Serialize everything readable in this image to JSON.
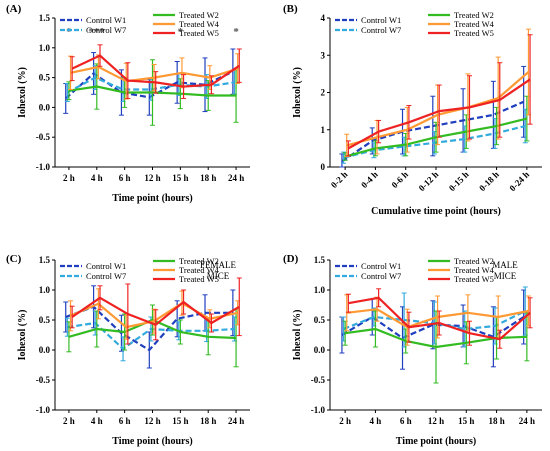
{
  "colors": {
    "W1": "#1f3fbf",
    "W7": "#33aadd",
    "W2": "#33bb22",
    "W4": "#ff9933",
    "W5": "#ee2222"
  },
  "chart_data": [
    {
      "panel": "(A)",
      "type": "line",
      "categories": [
        "2 h",
        "4 h",
        "6 h",
        "12 h",
        "15 h",
        "18 h",
        "24 h"
      ],
      "xlabel": "Time point (hours)",
      "ylabel": "Iohexol (%)",
      "ylim": [
        -1.0,
        1.5
      ],
      "yticks": [
        "-1.0",
        "-0.5",
        "0.0",
        "0.5",
        "1.0",
        "1.5"
      ],
      "annotation": "",
      "stars": [
        {
          "idx": 0,
          "text": "*"
        },
        {
          "idx": 1,
          "text": "***"
        },
        {
          "idx": 4,
          "text": "*"
        },
        {
          "idx": 6,
          "text": "*"
        }
      ],
      "legend": {
        "left": [
          "Control W1",
          "Control W7"
        ],
        "right": [
          "Treated W2",
          "Treated W4",
          "Treated W5"
        ]
      },
      "series": [
        {
          "name": "Control W1",
          "key": "W1",
          "dash": true,
          "values": [
            0.15,
            0.57,
            0.25,
            0.17,
            0.42,
            0.38,
            0.6
          ],
          "err": [
            0.25,
            0.35,
            0.38,
            0.3,
            0.35,
            0.45,
            0.38
          ]
        },
        {
          "name": "Control W7",
          "key": "W7",
          "dash": true,
          "values": [
            0.25,
            0.5,
            0.3,
            0.3,
            0.38,
            0.35,
            0.42
          ],
          "err": [
            0.15,
            0.2,
            0.2,
            0.18,
            0.18,
            0.2,
            0.2
          ]
        },
        {
          "name": "Treated W2",
          "key": "W2",
          "dash": false,
          "values": [
            0.28,
            0.35,
            0.25,
            0.25,
            0.23,
            0.2,
            0.2
          ],
          "err": [
            0.15,
            0.38,
            0.25,
            0.55,
            0.25,
            0.25,
            0.45
          ]
        },
        {
          "name": "Treated W4",
          "key": "W4",
          "dash": false,
          "values": [
            0.58,
            0.68,
            0.44,
            0.5,
            0.58,
            0.5,
            0.65
          ],
          "err": [
            0.28,
            0.2,
            0.3,
            0.22,
            0.25,
            0.2,
            0.25
          ]
        },
        {
          "name": "Treated W5",
          "key": "W5",
          "dash": false,
          "values": [
            0.65,
            0.87,
            0.45,
            0.42,
            0.35,
            0.38,
            0.7
          ],
          "err": [
            0.2,
            0.18,
            0.3,
            0.18,
            0.2,
            0.15,
            0.28
          ]
        }
      ]
    },
    {
      "panel": "(B)",
      "type": "line",
      "categories": [
        "0-2 h",
        "0-4 h",
        "0-6 h",
        "0-12 h",
        "0-15 h",
        "0-18 h",
        "0-24 h"
      ],
      "xlabel": "Cumulative time point (hours)",
      "ylabel": "Iohexol (%)",
      "ylim": [
        0,
        4
      ],
      "yticks": [
        "0",
        "1",
        "2",
        "3",
        "4"
      ],
      "annotation": "",
      "stars": [],
      "legend": {
        "left": [
          "Control W1",
          "Control W7"
        ],
        "right": [
          "Treated W2",
          "Treated W4",
          "Treated W5"
        ]
      },
      "series": [
        {
          "name": "Control W1",
          "key": "W1",
          "dash": true,
          "values": [
            0.15,
            0.7,
            0.95,
            1.1,
            1.25,
            1.4,
            1.75
          ],
          "err": [
            0.2,
            0.35,
            0.6,
            0.8,
            0.85,
            0.9,
            0.95
          ]
        },
        {
          "name": "Control W7",
          "key": "W7",
          "dash": true,
          "values": [
            0.25,
            0.45,
            0.55,
            0.65,
            0.75,
            0.9,
            1.1
          ],
          "err": [
            0.15,
            0.2,
            0.25,
            0.3,
            0.35,
            0.4,
            0.45
          ]
        },
        {
          "name": "Treated W2",
          "key": "W2",
          "dash": false,
          "values": [
            0.28,
            0.5,
            0.6,
            0.8,
            0.95,
            1.1,
            1.3
          ],
          "err": [
            0.1,
            0.2,
            0.3,
            0.4,
            0.45,
            0.5,
            0.6
          ]
        },
        {
          "name": "Treated W4",
          "key": "W4",
          "dash": false,
          "values": [
            0.58,
            0.8,
            1.0,
            1.4,
            1.6,
            1.85,
            2.55
          ],
          "err": [
            0.3,
            0.45,
            0.6,
            0.8,
            0.9,
            1.1,
            1.15
          ]
        },
        {
          "name": "Treated W5",
          "key": "W5",
          "dash": false,
          "values": [
            0.5,
            0.95,
            1.2,
            1.5,
            1.6,
            1.8,
            2.35
          ],
          "err": [
            0.2,
            0.3,
            0.45,
            0.7,
            0.85,
            1.0,
            1.2
          ]
        }
      ]
    },
    {
      "panel": "(C)",
      "type": "line",
      "categories": [
        "2 h",
        "4 h",
        "6 h",
        "12 h",
        "15 h",
        "18 h",
        "24 h"
      ],
      "xlabel": "Time point (hours)",
      "ylabel": "Iohexol (%)",
      "ylim": [
        -1.0,
        1.5
      ],
      "yticks": [
        "-1.0",
        "-0.5",
        "0.0",
        "0.5",
        "1.0",
        "1.5"
      ],
      "annotation": "FEMALE MICE",
      "stars": [],
      "legend": {
        "left": [
          "Control W1",
          "Control W7"
        ],
        "right": [
          "Treated W2",
          "Treated W4",
          "Treated W5"
        ]
      },
      "series": [
        {
          "name": "Control W1",
          "key": "W1",
          "dash": true,
          "values": [
            0.55,
            0.72,
            0.28,
            0.0,
            0.52,
            0.62,
            0.62
          ],
          "err": [
            0.25,
            0.35,
            0.3,
            0.3,
            0.3,
            0.3,
            0.38
          ]
        },
        {
          "name": "Control W7",
          "key": "W7",
          "dash": true,
          "values": [
            0.38,
            0.45,
            0.02,
            0.35,
            0.32,
            0.32,
            0.35
          ],
          "err": [
            0.15,
            0.2,
            0.2,
            0.2,
            0.15,
            0.18,
            0.2
          ]
        },
        {
          "name": "Treated W2",
          "key": "W2",
          "dash": false,
          "values": [
            0.22,
            0.35,
            0.3,
            0.5,
            0.3,
            0.22,
            0.2
          ],
          "err": [
            0.25,
            0.3,
            0.3,
            0.25,
            0.2,
            0.3,
            0.48
          ]
        },
        {
          "name": "Treated W4",
          "key": "W4",
          "dash": false,
          "values": [
            0.57,
            0.77,
            0.38,
            0.48,
            0.78,
            0.52,
            0.62
          ],
          "err": [
            0.25,
            0.25,
            0.2,
            0.2,
            0.2,
            0.15,
            0.2
          ]
        },
        {
          "name": "Treated W5",
          "key": "W5",
          "dash": false,
          "values": [
            0.55,
            0.87,
            0.6,
            0.42,
            0.8,
            0.45,
            0.72
          ],
          "err": [
            0.18,
            0.2,
            0.5,
            0.25,
            0.2,
            0.15,
            0.48
          ]
        }
      ]
    },
    {
      "panel": "(D)",
      "type": "line",
      "categories": [
        "2 h",
        "4 h",
        "6 h",
        "12 h",
        "15 h",
        "18 h",
        "24 h"
      ],
      "xlabel": "Time point (hours)",
      "ylabel": "Iohexol (%)",
      "ylim": [
        -1.0,
        1.5
      ],
      "yticks": [
        "-1.0",
        "-0.5",
        "0.0",
        "0.5",
        "1.0",
        "1.5"
      ],
      "annotation": "MALE MICE",
      "stars": [],
      "legend": {
        "left": [
          "Control W1",
          "Control W7"
        ],
        "right": [
          "Treated W2",
          "Treated W4",
          "Treated W5"
        ]
      },
      "series": [
        {
          "name": "Control W1",
          "key": "W1",
          "dash": true,
          "values": [
            0.25,
            0.55,
            0.2,
            0.42,
            0.4,
            0.22,
            0.55
          ],
          "err": [
            0.3,
            0.3,
            0.52,
            0.4,
            0.35,
            0.5,
            0.45
          ]
        },
        {
          "name": "Control W7",
          "key": "W7",
          "dash": true,
          "values": [
            0.35,
            0.55,
            0.5,
            0.45,
            0.35,
            0.4,
            0.65
          ],
          "err": [
            0.2,
            0.15,
            0.45,
            0.35,
            0.3,
            0.3,
            0.4
          ]
        },
        {
          "name": "Treated W2",
          "key": "W2",
          "dash": false,
          "values": [
            0.28,
            0.35,
            0.15,
            0.05,
            0.12,
            0.2,
            0.22
          ],
          "err": [
            0.2,
            0.3,
            0.2,
            0.6,
            0.35,
            0.35,
            0.4
          ]
        },
        {
          "name": "Treated W4",
          "key": "W4",
          "dash": false,
          "values": [
            0.62,
            0.68,
            0.38,
            0.55,
            0.62,
            0.55,
            0.65
          ],
          "err": [
            0.3,
            0.2,
            0.3,
            0.35,
            0.3,
            0.35,
            0.25
          ]
        },
        {
          "name": "Treated W5",
          "key": "W5",
          "dash": false,
          "values": [
            0.78,
            0.87,
            0.38,
            0.45,
            0.28,
            0.18,
            0.62
          ],
          "err": [
            0.15,
            0.15,
            0.25,
            0.2,
            0.2,
            0.15,
            0.25
          ]
        }
      ]
    }
  ]
}
